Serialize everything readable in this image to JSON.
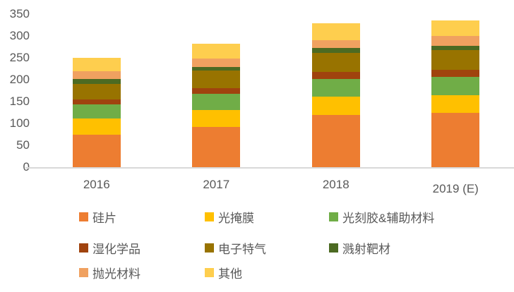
{
  "chart_data": {
    "type": "bar",
    "stacked": true,
    "title": "",
    "categories": [
      "2016",
      "2017",
      "2018",
      "2019 (E)"
    ],
    "series": [
      {
        "key": "silicon-wafer",
        "name": "硅片",
        "color": "#ED7D31",
        "values": [
          74,
          92,
          119,
          124
        ]
      },
      {
        "key": "photomask",
        "name": "光掩膜",
        "color": "#FFC000",
        "values": [
          37,
          38,
          43,
          40
        ]
      },
      {
        "key": "photoresist-aux",
        "name": "光刻胶&辅助材料",
        "color": "#70AD47",
        "values": [
          32,
          38,
          40,
          43
        ]
      },
      {
        "key": "wet-chemicals",
        "name": "湿化学品",
        "color": "#A0430E",
        "values": [
          12,
          13,
          16,
          16
        ]
      },
      {
        "key": "electronic-gases",
        "name": "电子特气",
        "color": "#987300",
        "values": [
          36,
          40,
          43,
          45
        ]
      },
      {
        "key": "sputtering-targets",
        "name": "溅射靶材",
        "color": "#4C6A22",
        "values": [
          10,
          8,
          11,
          10
        ]
      },
      {
        "key": "polishing-materials",
        "name": "抛光材料",
        "color": "#F0A160",
        "values": [
          18,
          19,
          18,
          22
        ]
      },
      {
        "key": "others",
        "name": "其他",
        "color": "#FECE4E",
        "values": [
          31,
          35,
          39,
          35
        ]
      }
    ],
    "totals": [
      250,
      283,
      329,
      335
    ],
    "y_axis": {
      "min": 0,
      "max": 350,
      "step": 50,
      "ticks": [
        0,
        50,
        100,
        150,
        200,
        250,
        300,
        350
      ]
    },
    "grid": false,
    "legend_position": "bottom",
    "legend_rows": 3,
    "legend_columns": 3,
    "axis_color": "#D9D9D9",
    "label_color": "#595959"
  }
}
